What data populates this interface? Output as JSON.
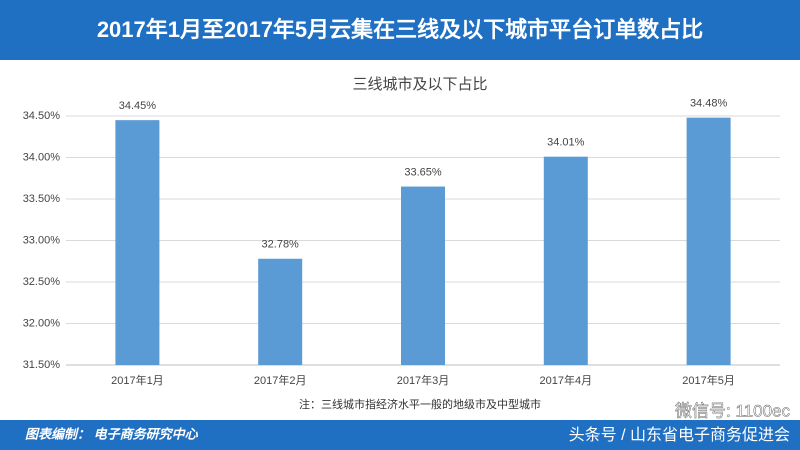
{
  "header": {
    "title": "2017年1月至2017年5月云集在三线及以下城市平台订单数占比"
  },
  "chart_data": {
    "type": "bar",
    "title": "三线城市及以下占比",
    "categories": [
      "2017年1月",
      "2017年2月",
      "2017年3月",
      "2017年4月",
      "2017年5月"
    ],
    "values": [
      34.45,
      32.78,
      33.65,
      34.01,
      34.48
    ],
    "value_labels": [
      "34.45%",
      "32.78%",
      "33.65%",
      "34.01%",
      "34.48%"
    ],
    "color": "#5b9bd5",
    "ylim": [
      31.5,
      34.5
    ],
    "yticks": [
      {
        "value": 31.5,
        "label": "31.50%"
      },
      {
        "value": 32,
        "label": "32.00%"
      },
      {
        "value": 32.5,
        "label": "32.50%"
      },
      {
        "value": 33,
        "label": "33.00%"
      },
      {
        "value": 33.5,
        "label": "33.50%"
      },
      {
        "value": 34,
        "label": "34.00%"
      },
      {
        "value": 34.5,
        "label": "34.50%"
      }
    ],
    "grid": true,
    "note": "注：三线城市指经济水平一般的地级市及中型城市"
  },
  "footer": {
    "credit": "图表编制：  电子商务研究中心",
    "wechat": "微信号: 1100ec",
    "toutiao": "头条号 / 山东省电子商务促进会"
  }
}
